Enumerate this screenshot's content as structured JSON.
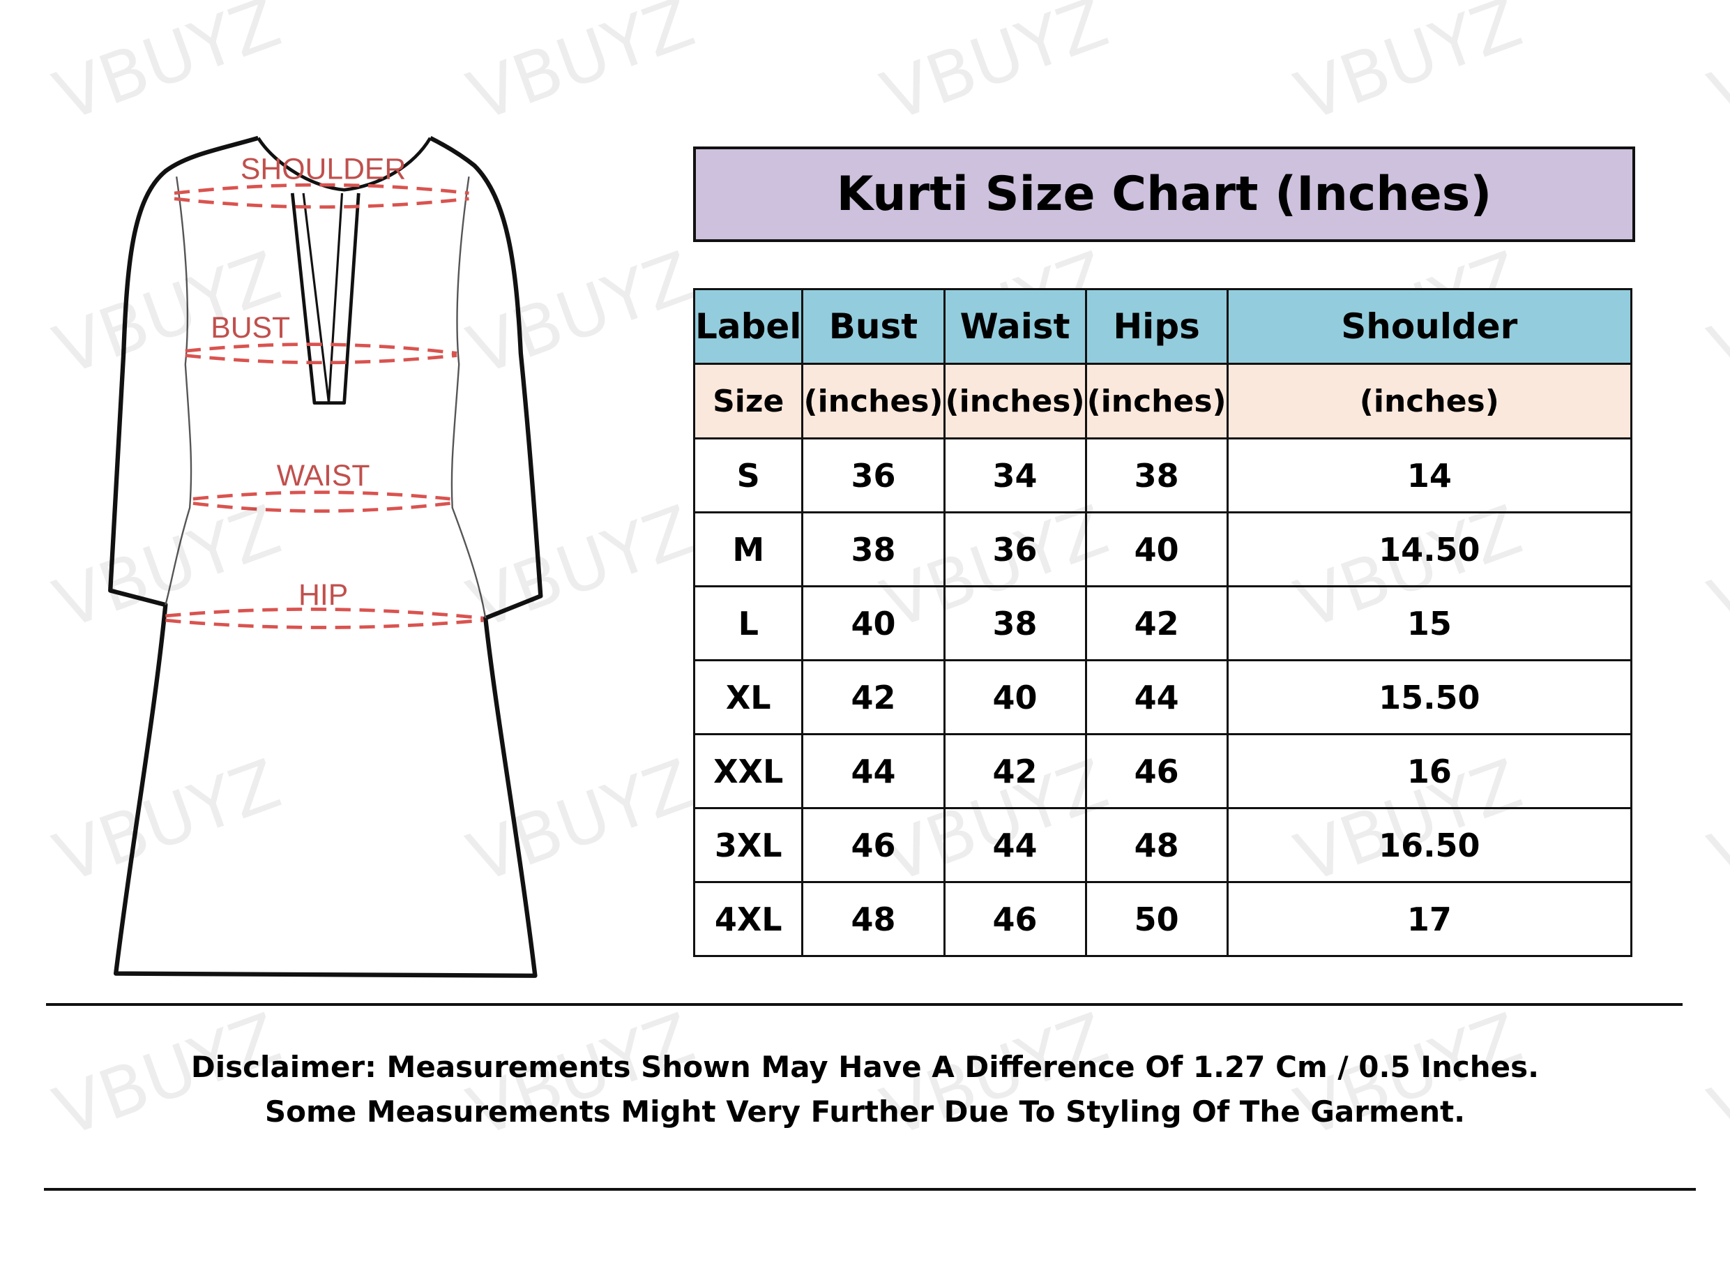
{
  "watermark": "VBUYZ",
  "diagram": {
    "labels": [
      "SHOULDER",
      "BUST",
      "WAIST",
      "HIP"
    ]
  },
  "title": "Kurti Size Chart (Inches)",
  "table": {
    "headers": [
      "Label",
      "Bust",
      "Waist",
      "Hips",
      "Shoulder"
    ],
    "subheaders": [
      "Size",
      "(inches)",
      "(inches)",
      "(inches)",
      "(inches)"
    ],
    "rows": [
      [
        "S",
        "36",
        "34",
        "38",
        "14"
      ],
      [
        "M",
        "38",
        "36",
        "40",
        "14.50"
      ],
      [
        "L",
        "40",
        "38",
        "42",
        "15"
      ],
      [
        "XL",
        "42",
        "40",
        "44",
        "15.50"
      ],
      [
        "XXL",
        "44",
        "42",
        "46",
        "16"
      ],
      [
        "3XL",
        "46",
        "44",
        "48",
        "16.50"
      ],
      [
        "4XL",
        "48",
        "46",
        "50",
        "17"
      ]
    ]
  },
  "disclaimer": {
    "line1": "Disclaimer: Measurements Shown May Have A Difference Of 1.27 Cm / 0.5 Inches.",
    "line2": "Some Measurements Might Very Further Due To Styling Of The Garment."
  },
  "colors": {
    "title_bg": "#cdc1dd",
    "header_bg": "#93cddd",
    "subheader_bg": "#fbe8dc",
    "measure_line": "#d9534f"
  }
}
